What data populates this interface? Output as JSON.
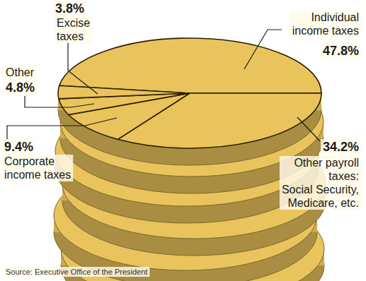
{
  "chart_data": {
    "type": "pie",
    "categories": [
      "Individual income taxes",
      "Other payroll taxes: Social Security, Medicare, etc.",
      "Corporate income taxes",
      "Other",
      "Excise taxes"
    ],
    "values": [
      47.8,
      34.2,
      9.4,
      4.8,
      3.8
    ],
    "value_labels": [
      "47.8%",
      "34.2%",
      "9.4%",
      "4.8%",
      "3.8%"
    ],
    "data_labels": true,
    "color": "#e9c35c",
    "source": "Source: Executive Office of the President"
  }
}
